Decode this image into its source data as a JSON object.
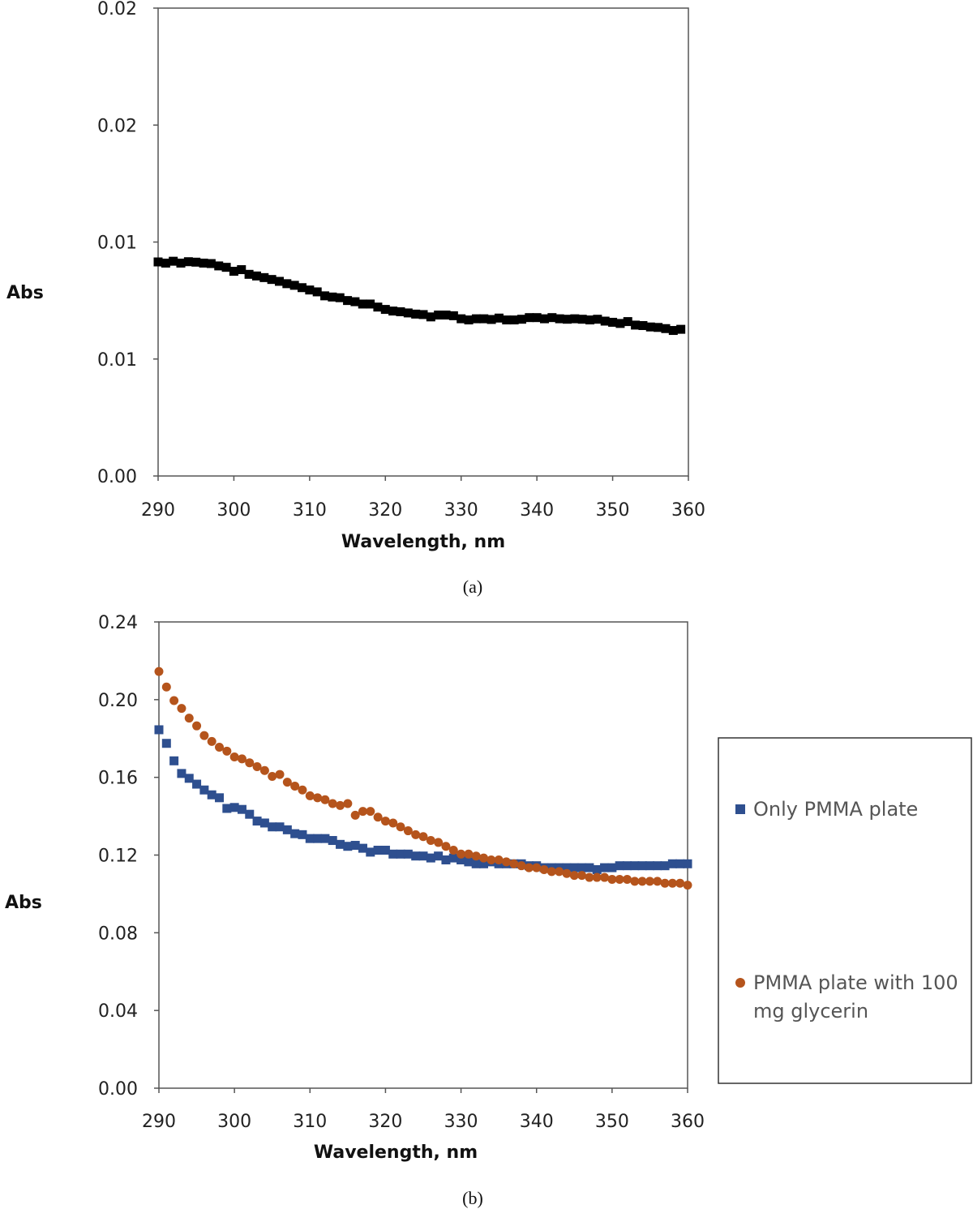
{
  "chart_data": [
    {
      "panel": "a",
      "type": "scatter",
      "caption": "(a)",
      "xlabel": "Wavelength, nm",
      "ylabel": "Abs",
      "xlim": [
        290,
        360
      ],
      "ylim": [
        0,
        0.02
      ],
      "x_ticks": [
        290,
        300,
        310,
        320,
        330,
        340,
        350,
        360
      ],
      "y_tick_values": [
        0,
        0.005,
        0.01,
        0.015,
        0.02
      ],
      "y_tick_labels": [
        "0.00",
        "0.01",
        "0.01",
        "0.02",
        "0.02"
      ],
      "grid": false,
      "series": [
        {
          "name": "",
          "marker": "square",
          "color": "#000000",
          "x": [
            290,
            291,
            292,
            293,
            294,
            295,
            296,
            297,
            298,
            299,
            300,
            301,
            302,
            303,
            304,
            305,
            306,
            307,
            308,
            309,
            310,
            311,
            312,
            313,
            314,
            315,
            316,
            317,
            318,
            319,
            320,
            321,
            322,
            323,
            324,
            325,
            326,
            327,
            328,
            329,
            330,
            331,
            332,
            333,
            334,
            335,
            336,
            337,
            338,
            339,
            340,
            341,
            342,
            343,
            344,
            345,
            346,
            347,
            348,
            349,
            350,
            351,
            352,
            353,
            354,
            355,
            356,
            357,
            358,
            359
          ],
          "y": [
            0.00915,
            0.0091,
            0.00918,
            0.0091,
            0.00916,
            0.00914,
            0.0091,
            0.00908,
            0.00898,
            0.00892,
            0.00875,
            0.00882,
            0.00862,
            0.00855,
            0.00848,
            0.0084,
            0.00832,
            0.00822,
            0.00815,
            0.00805,
            0.00795,
            0.00787,
            0.0077,
            0.00765,
            0.00762,
            0.0075,
            0.00745,
            0.00735,
            0.00735,
            0.00722,
            0.00712,
            0.00705,
            0.00702,
            0.00697,
            0.00692,
            0.0069,
            0.0068,
            0.00688,
            0.00688,
            0.00685,
            0.00672,
            0.00667,
            0.00672,
            0.00672,
            0.00669,
            0.00675,
            0.00667,
            0.00667,
            0.0067,
            0.00677,
            0.00677,
            0.00672,
            0.00677,
            0.00672,
            0.0067,
            0.00672,
            0.0067,
            0.00667,
            0.0067,
            0.00662,
            0.00657,
            0.00652,
            0.0066,
            0.00645,
            0.00643,
            0.00637,
            0.00635,
            0.0063,
            0.00622,
            0.00627
          ]
        }
      ]
    },
    {
      "panel": "b",
      "type": "scatter",
      "caption": "(b)",
      "xlabel": "Wavelength, nm",
      "ylabel": "Abs",
      "xlim": [
        290,
        360
      ],
      "ylim": [
        0,
        0.24
      ],
      "x_ticks": [
        290,
        300,
        310,
        320,
        330,
        340,
        350,
        360
      ],
      "y_tick_values": [
        0,
        0.04,
        0.08,
        0.12,
        0.16,
        0.2,
        0.24
      ],
      "y_tick_labels": [
        "0.00",
        "0.04",
        "0.08",
        "0.12",
        "0.16",
        "0.20",
        "0.24"
      ],
      "grid": false,
      "legend_position": "right",
      "series": [
        {
          "name": "Only PMMA plate",
          "marker": "square",
          "color": "#2e4f8f",
          "x": [
            290,
            291,
            292,
            293,
            294,
            295,
            296,
            297,
            298,
            299,
            300,
            301,
            302,
            303,
            304,
            305,
            306,
            307,
            308,
            309,
            310,
            311,
            312,
            313,
            314,
            315,
            316,
            317,
            318,
            319,
            320,
            321,
            322,
            323,
            324,
            325,
            326,
            327,
            328,
            329,
            330,
            331,
            332,
            333,
            334,
            335,
            336,
            337,
            338,
            339,
            340,
            341,
            342,
            343,
            344,
            345,
            346,
            347,
            348,
            349,
            350,
            351,
            352,
            353,
            354,
            355,
            356,
            357,
            358,
            359,
            360
          ],
          "y": [
            0.1845,
            0.1775,
            0.1685,
            0.162,
            0.1595,
            0.1565,
            0.1535,
            0.151,
            0.1495,
            0.144,
            0.1445,
            0.1435,
            0.141,
            0.1375,
            0.1365,
            0.1345,
            0.1345,
            0.133,
            0.131,
            0.1305,
            0.1285,
            0.1285,
            0.1285,
            0.1275,
            0.1255,
            0.1245,
            0.125,
            0.1235,
            0.1215,
            0.1225,
            0.1225,
            0.1205,
            0.1205,
            0.1205,
            0.1195,
            0.1195,
            0.1185,
            0.1195,
            0.1175,
            0.1185,
            0.1175,
            0.1165,
            0.1155,
            0.1155,
            0.1165,
            0.1155,
            0.1155,
            0.1155,
            0.1155,
            0.1145,
            0.1145,
            0.1135,
            0.1135,
            0.1135,
            0.1135,
            0.1135,
            0.1135,
            0.1135,
            0.1125,
            0.1135,
            0.1135,
            0.1145,
            0.1145,
            0.1145,
            0.1145,
            0.1145,
            0.1145,
            0.1145,
            0.1155,
            0.1155,
            0.1155
          ]
        },
        {
          "name": "PMMA plate with 100 mg glycerin",
          "legend_lines": [
            "PMMA plate with 100",
            "mg glycerin"
          ],
          "marker": "circle",
          "color": "#b5541c",
          "x": [
            290,
            291,
            292,
            293,
            294,
            295,
            296,
            297,
            298,
            299,
            300,
            301,
            302,
            303,
            304,
            305,
            306,
            307,
            308,
            309,
            310,
            311,
            312,
            313,
            314,
            315,
            316,
            317,
            318,
            319,
            320,
            321,
            322,
            323,
            324,
            325,
            326,
            327,
            328,
            329,
            330,
            331,
            332,
            333,
            334,
            335,
            336,
            337,
            338,
            339,
            340,
            341,
            342,
            343,
            344,
            345,
            346,
            347,
            348,
            349,
            350,
            351,
            352,
            353,
            354,
            355,
            356,
            357,
            358,
            359,
            360
          ],
          "y": [
            0.2145,
            0.2065,
            0.1995,
            0.1955,
            0.1905,
            0.1865,
            0.1815,
            0.1785,
            0.1755,
            0.1735,
            0.1705,
            0.1695,
            0.1675,
            0.1655,
            0.1635,
            0.1605,
            0.1615,
            0.1575,
            0.1555,
            0.1535,
            0.1505,
            0.1495,
            0.1485,
            0.1465,
            0.1455,
            0.1465,
            0.1405,
            0.1425,
            0.1425,
            0.1395,
            0.1375,
            0.1365,
            0.1345,
            0.1325,
            0.1305,
            0.1295,
            0.1275,
            0.1265,
            0.1245,
            0.1225,
            0.1205,
            0.1205,
            0.1195,
            0.1185,
            0.1175,
            0.1175,
            0.1165,
            0.1155,
            0.1145,
            0.1135,
            0.1135,
            0.1125,
            0.1115,
            0.1115,
            0.1105,
            0.1095,
            0.1095,
            0.1085,
            0.1085,
            0.1085,
            0.1075,
            0.1075,
            0.1075,
            0.1065,
            0.1065,
            0.1065,
            0.1065,
            0.1055,
            0.1055,
            0.1055,
            0.1045
          ]
        }
      ]
    }
  ]
}
